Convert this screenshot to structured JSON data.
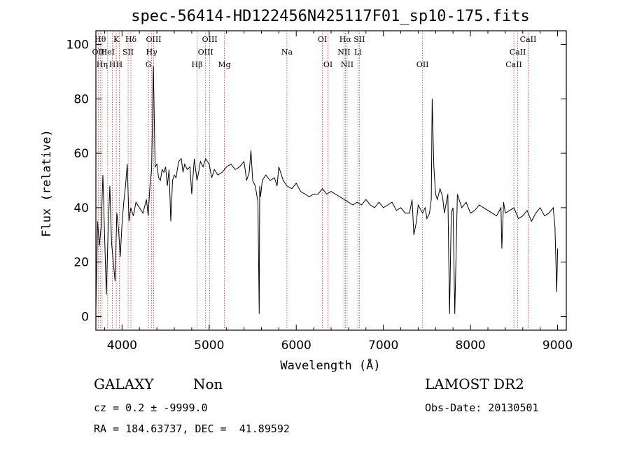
{
  "chart_data": {
    "type": "line",
    "title": "spec-56414-HD122456N425117F01_sp10-175.fits",
    "xlabel": "Wavelength (Å)",
    "ylabel": "Flux (relative)",
    "xlim": [
      3700,
      9100
    ],
    "ylim": [
      -5,
      105
    ],
    "xticks": [
      4000,
      5000,
      6000,
      7000,
      8000,
      9000
    ],
    "yticks": [
      0,
      20,
      40,
      60,
      80,
      100
    ],
    "grid": false,
    "line_color": "#000000",
    "marker_color": "#cc3333",
    "series": [
      {
        "x": [
          3700,
          3720,
          3740,
          3760,
          3780,
          3800,
          3820,
          3840,
          3860,
          3880,
          3900,
          3920,
          3940,
          3960,
          3980,
          4000,
          4020,
          4040,
          4060,
          4080,
          4100,
          4130,
          4160,
          4200,
          4240,
          4280,
          4300,
          4320,
          4340,
          4360,
          4380,
          4400,
          4420,
          4440,
          4460,
          4480,
          4500,
          4520,
          4540,
          4560,
          4580,
          4600,
          4620,
          4650,
          4680,
          4700,
          4720,
          4750,
          4780,
          4800,
          4830,
          4860,
          4880,
          4900,
          4930,
          4960,
          5000,
          5030,
          5060,
          5100,
          5150,
          5200,
          5250,
          5300,
          5350,
          5400,
          5430,
          5460,
          5480,
          5500,
          5530,
          5560,
          5575,
          5580,
          5590,
          5610,
          5650,
          5700,
          5750,
          5780,
          5800,
          5850,
          5893,
          5950,
          6000,
          6050,
          6100,
          6150,
          6200,
          6250,
          6300,
          6350,
          6400,
          6450,
          6500,
          6550,
          6600,
          6650,
          6700,
          6750,
          6800,
          6850,
          6900,
          6950,
          7000,
          7050,
          7100,
          7150,
          7200,
          7250,
          7300,
          7330,
          7350,
          7380,
          7400,
          7450,
          7480,
          7500,
          7530,
          7550,
          7560,
          7580,
          7600,
          7620,
          7650,
          7680,
          7700,
          7740,
          7760,
          7780,
          7800,
          7820,
          7850,
          7900,
          7950,
          8000,
          8050,
          8100,
          8150,
          8200,
          8250,
          8300,
          8350,
          8360,
          8380,
          8400,
          8450,
          8500,
          8550,
          8600,
          8650,
          8700,
          8750,
          8800,
          8850,
          8900,
          8950,
          8970,
          8990,
          9000
        ],
        "y": [
          3,
          35,
          26,
          33,
          52,
          30,
          8,
          31,
          48,
          27,
          20,
          13,
          38,
          32,
          22,
          34,
          42,
          48,
          56,
          35,
          40,
          37,
          42,
          40,
          38,
          43,
          37,
          48,
          54,
          92,
          55,
          56,
          51,
          50,
          54,
          53,
          55,
          48,
          54,
          35,
          50,
          52,
          51,
          57,
          58,
          53,
          56,
          54,
          55,
          45,
          58,
          50,
          53,
          57,
          55,
          58,
          56,
          51,
          54,
          52,
          53,
          55,
          56,
          54,
          55,
          57,
          50,
          53,
          61,
          50,
          48,
          42,
          1,
          48,
          44,
          50,
          52,
          50,
          51,
          48,
          55,
          50,
          48,
          47,
          49,
          46,
          45,
          44,
          45,
          45,
          47,
          45,
          46,
          45,
          44,
          43,
          42,
          41,
          42,
          41,
          43,
          41,
          40,
          42,
          40,
          41,
          42,
          39,
          40,
          38,
          38,
          43,
          30,
          35,
          41,
          38,
          40,
          36,
          38,
          43,
          80,
          55,
          45,
          43,
          47,
          44,
          38,
          45,
          1,
          38,
          40,
          1,
          45,
          40,
          42,
          38,
          39,
          41,
          40,
          39,
          38,
          37,
          40,
          25,
          42,
          38,
          39,
          40,
          36,
          37,
          39,
          35,
          38,
          40,
          37,
          38,
          40,
          33,
          9,
          25
        ]
      }
    ],
    "line_markers": [
      {
        "wl": 3727,
        "label": "OII",
        "row": 1
      },
      {
        "wl": 3750,
        "label": "Hθ",
        "row": 0
      },
      {
        "wl": 3771,
        "label": "Hη",
        "row": 2
      },
      {
        "wl": 3835,
        "label": "HeI",
        "row": 1
      },
      {
        "wl": 3889,
        "label": "H",
        "row": 2
      },
      {
        "wl": 3934,
        "label": "K",
        "row": 0
      },
      {
        "wl": 3969,
        "label": "H",
        "row": 2
      },
      {
        "wl": 4070,
        "label": "SII",
        "row": 1
      },
      {
        "wl": 4102,
        "label": "Hδ",
        "row": 0
      },
      {
        "wl": 4304,
        "label": "G",
        "row": 2
      },
      {
        "wl": 4340,
        "label": "Hγ",
        "row": 1
      },
      {
        "wl": 4363,
        "label": "OIII",
        "row": 0
      },
      {
        "wl": 4861,
        "label": "Hβ",
        "row": 2
      },
      {
        "wl": 4959,
        "label": "OIII",
        "row": 1
      },
      {
        "wl": 5007,
        "label": "OIII",
        "row": 0
      },
      {
        "wl": 5175,
        "label": "Mg",
        "row": 2
      },
      {
        "wl": 5893,
        "label": "Na",
        "row": 1
      },
      {
        "wl": 6300,
        "label": "OI",
        "row": 0
      },
      {
        "wl": 6364,
        "label": "OI",
        "row": 2
      },
      {
        "wl": 6548,
        "label": "NII",
        "row": 1
      },
      {
        "wl": 6563,
        "label": "Hα",
        "row": 0
      },
      {
        "wl": 6584,
        "label": "NII",
        "row": 2
      },
      {
        "wl": 6708,
        "label": "Li",
        "row": 1
      },
      {
        "wl": 6724,
        "label": "SII",
        "row": 0
      },
      {
        "wl": 7450,
        "label": "OII",
        "row": 2
      },
      {
        "wl": 8498,
        "label": "CaII",
        "row": 2
      },
      {
        "wl": 8542,
        "label": "CaII",
        "row": 1
      },
      {
        "wl": 8662,
        "label": "CaII",
        "row": 0
      }
    ]
  },
  "info": {
    "class": "GALAXY",
    "subclass": "Non",
    "survey": "LAMOST DR2",
    "cz": "cz = 0.2 ± -9999.0",
    "obs_date": "Obs-Date: 20130501",
    "coords": "RA = 184.63737, DEC =  41.89592"
  }
}
